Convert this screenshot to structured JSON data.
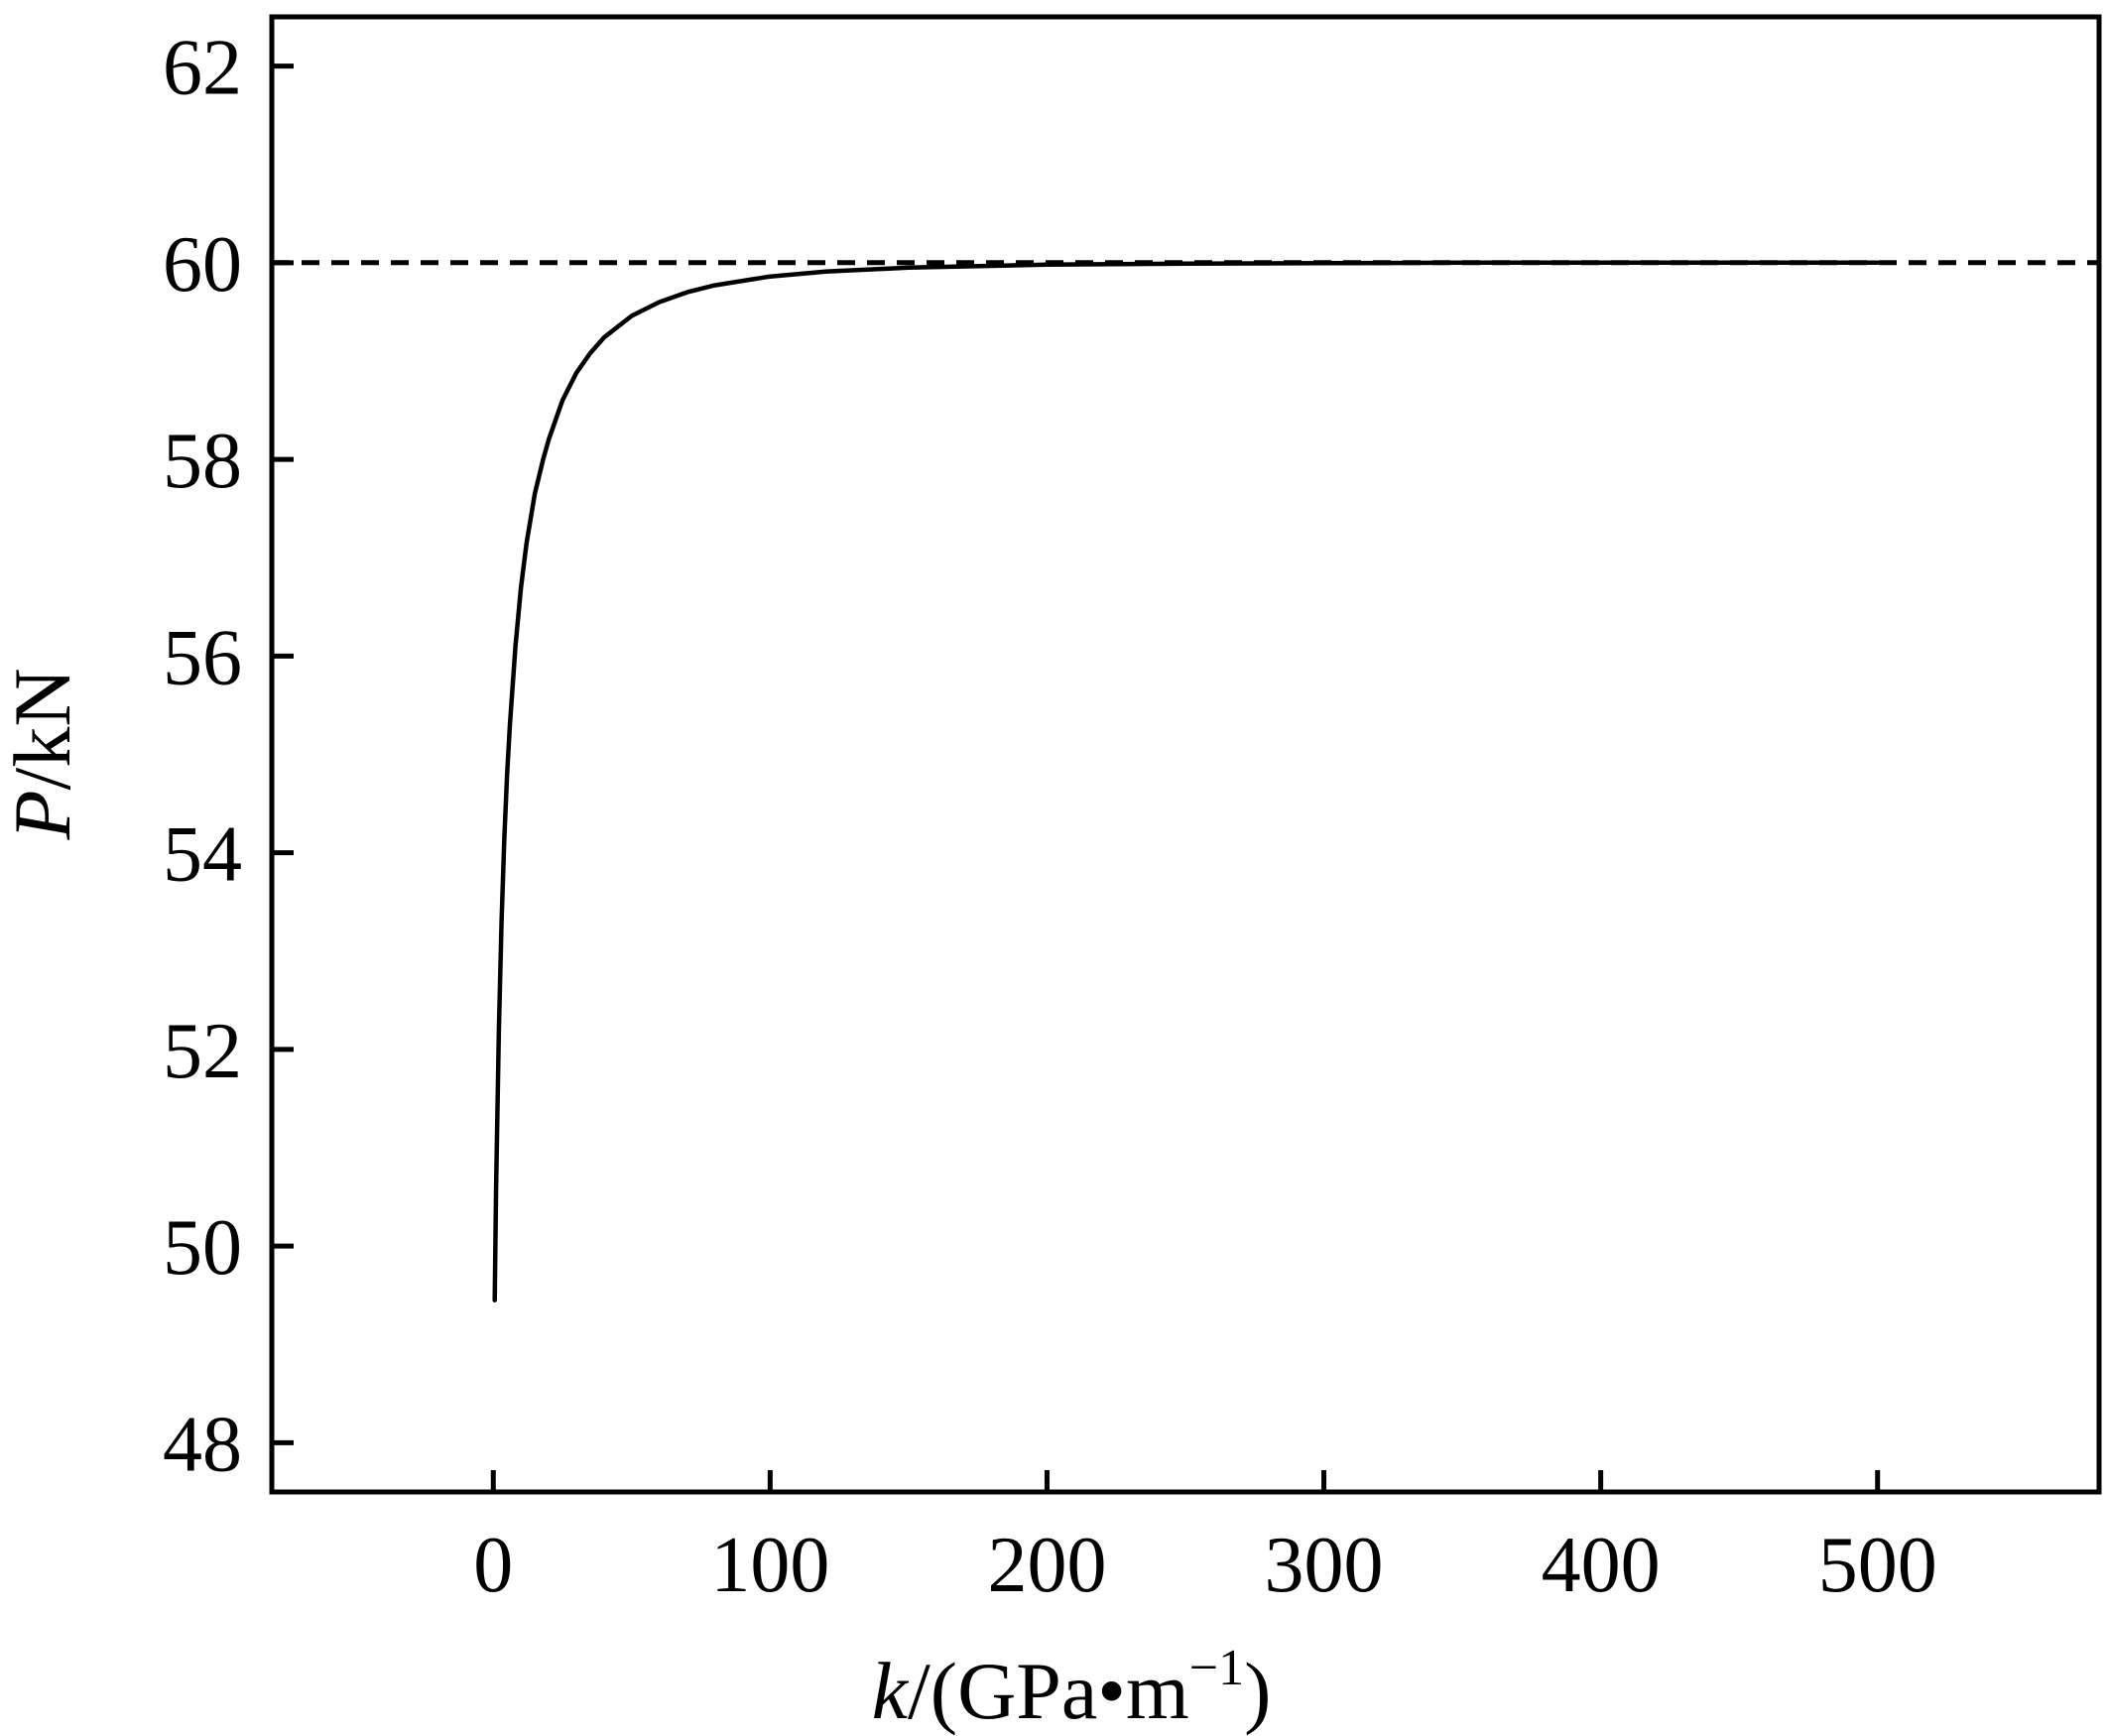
{
  "chart_data": {
    "type": "line",
    "title": "",
    "xlabel": {
      "var": "k",
      "unit_prefix": "/(GPa•m",
      "unit_exp": "−1",
      "unit_suffix": ")"
    },
    "ylabel": {
      "var": "P",
      "unit": "/kN"
    },
    "xlim": [
      -80,
      580
    ],
    "ylim": [
      47.5,
      62.5
    ],
    "x_ticks": [
      0,
      100,
      200,
      300,
      400,
      500
    ],
    "x_tick_labels": [
      "0",
      "100",
      "200",
      "300",
      "400",
      "500"
    ],
    "y_ticks": [
      48,
      50,
      52,
      54,
      56,
      58,
      60,
      62
    ],
    "y_tick_labels": [
      "48",
      "50",
      "52",
      "54",
      "56",
      "58",
      "60",
      "62"
    ],
    "grid": false,
    "series": [
      {
        "style": "solid",
        "color": "#000000",
        "x": [
          0.5,
          1,
          2,
          3,
          4,
          5,
          6,
          8,
          10,
          12,
          15,
          18,
          20,
          25,
          30,
          35,
          40,
          50,
          60,
          70,
          80,
          100,
          120,
          150,
          200,
          250,
          300,
          350,
          400,
          450,
          500
        ],
        "y": [
          49.45,
          50.6,
          52.2,
          53.3,
          54.15,
          54.8,
          55.3,
          56.1,
          56.7,
          57.15,
          57.65,
          58.0,
          58.2,
          58.6,
          58.88,
          59.08,
          59.24,
          59.46,
          59.6,
          59.7,
          59.77,
          59.86,
          59.91,
          59.95,
          59.98,
          59.99,
          59.995,
          60.0,
          60.0,
          60.0,
          60.0
        ]
      },
      {
        "style": "dashed",
        "color": "#000000",
        "x": [
          -80,
          580
        ],
        "y": [
          60,
          60
        ]
      }
    ]
  }
}
